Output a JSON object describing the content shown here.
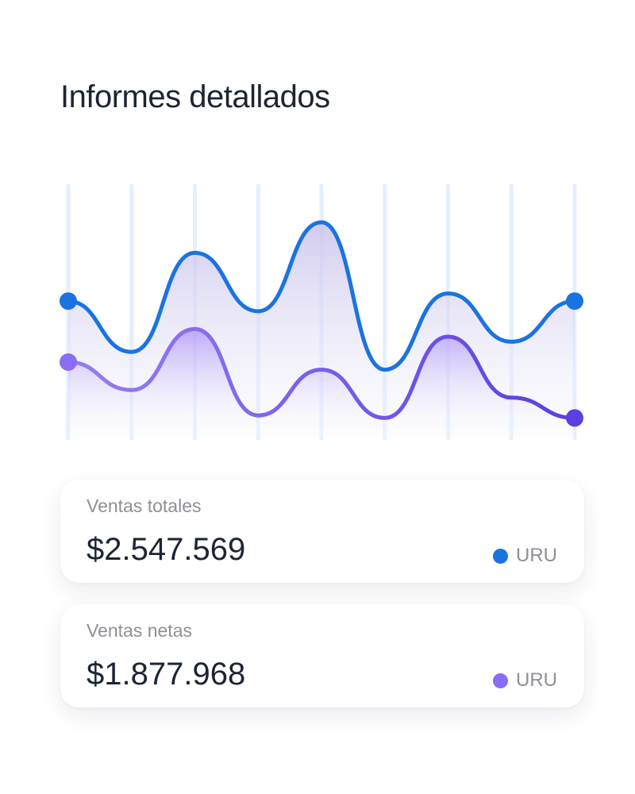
{
  "title": "Informes detallados",
  "colors": {
    "series1": "#1a73e0",
    "series2": "#8b6cf5",
    "series2_end": "#5b3fe0",
    "gridline": "#e3efff"
  },
  "chart_data": {
    "type": "line",
    "x": [
      0,
      1,
      2,
      3,
      4,
      5,
      6,
      7,
      8
    ],
    "ylim": [
      0,
      100
    ],
    "grid": "vertical",
    "series": [
      {
        "values": [
          54,
          34,
          73,
          50,
          85,
          27,
          57,
          38,
          54
        ]
      },
      {
        "values": [
          30,
          19,
          43,
          9,
          27,
          8,
          40,
          16,
          8
        ]
      }
    ]
  },
  "cards": [
    {
      "label": "Ventas totales",
      "value": "$2.547.569",
      "currency": "URU"
    },
    {
      "label": "Ventas netas",
      "value": "$1.877.968",
      "currency": "URU"
    }
  ]
}
